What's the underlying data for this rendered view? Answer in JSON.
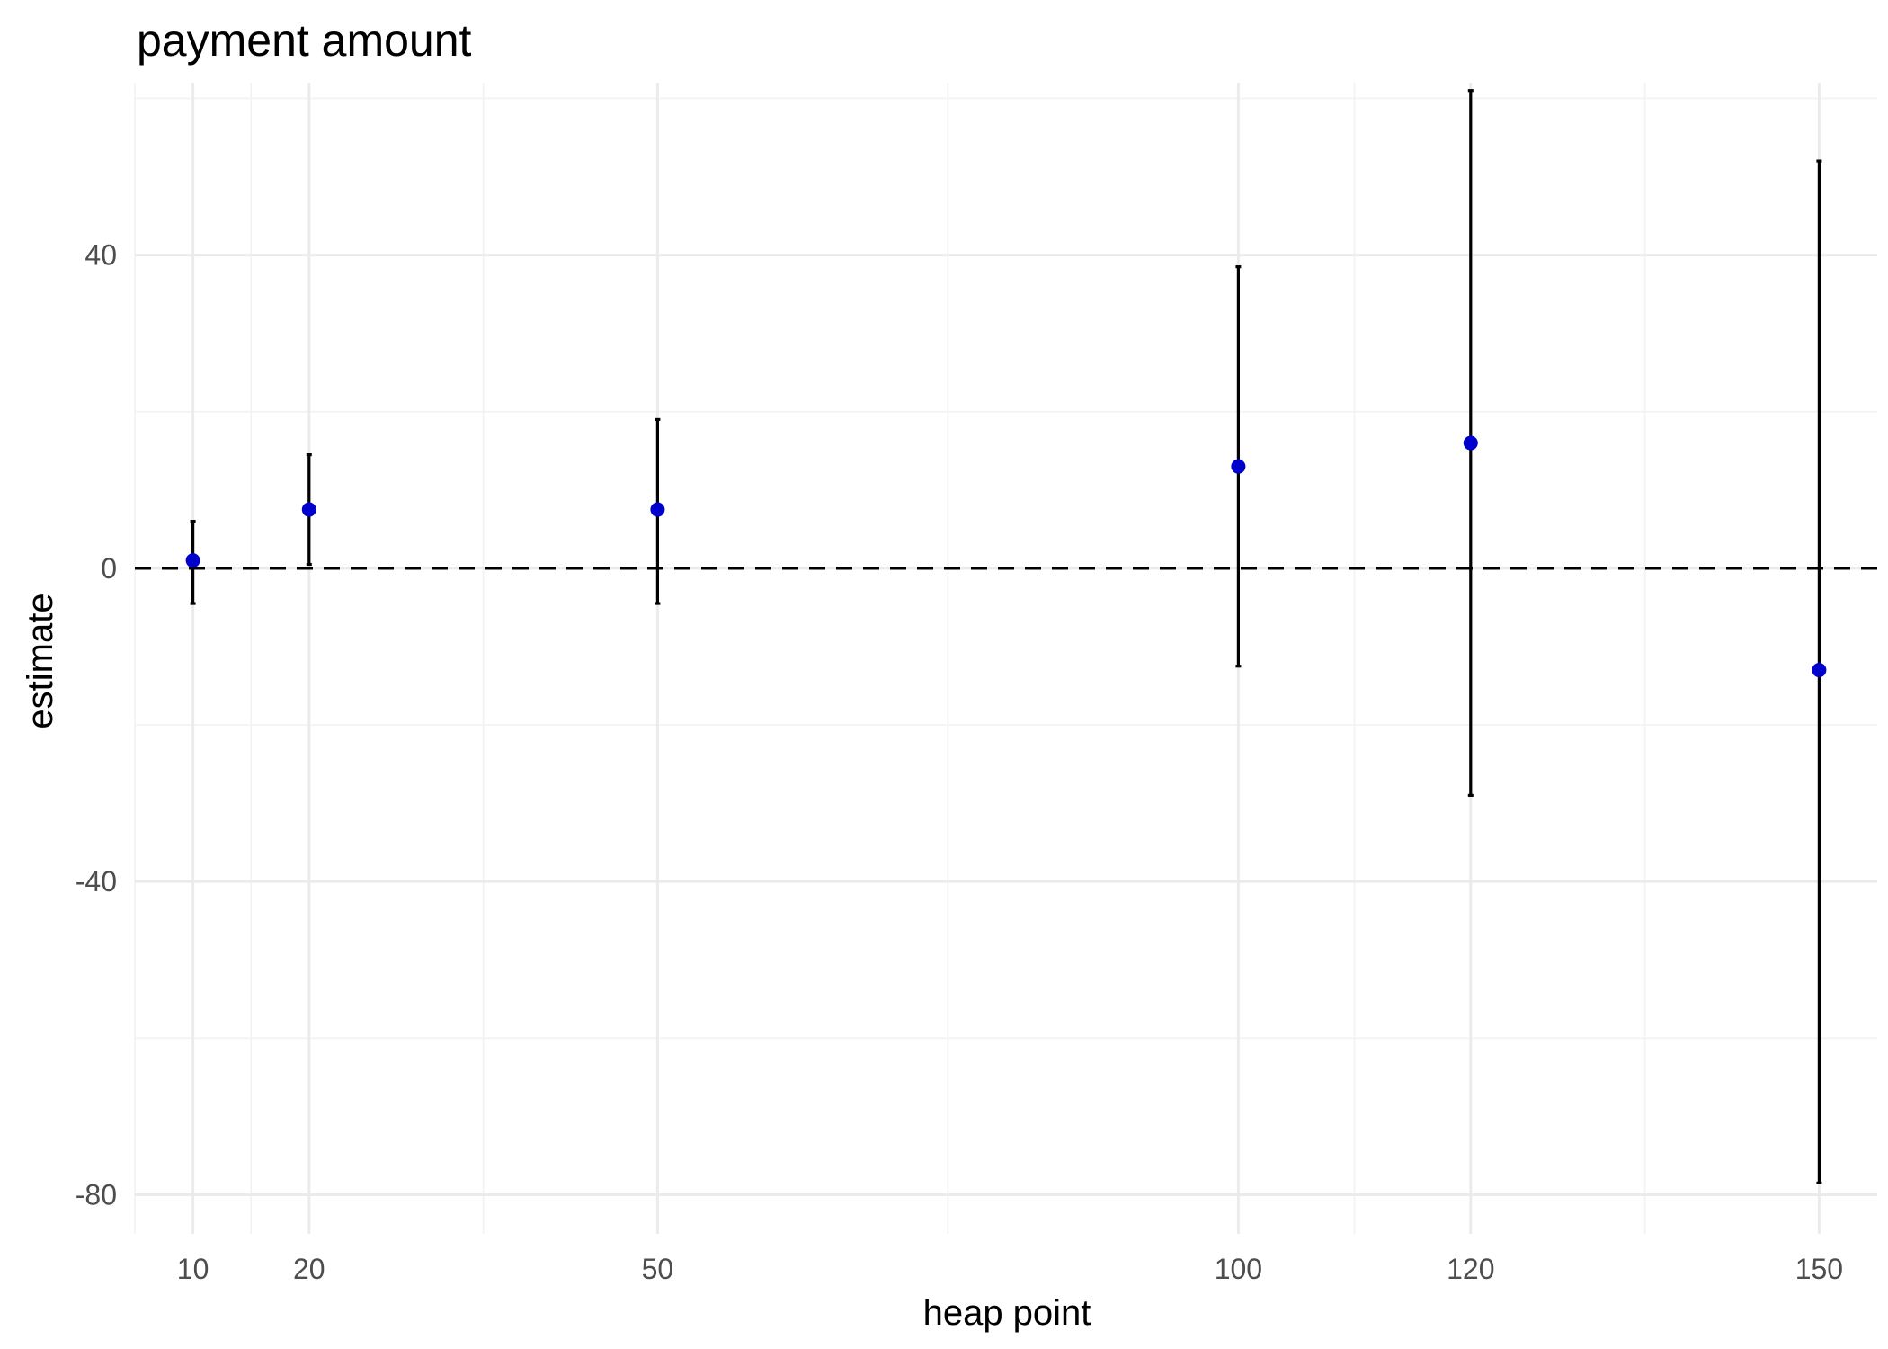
{
  "chart_data": {
    "type": "scatter",
    "title": "payment amount",
    "xlabel": "heap point",
    "ylabel": "estimate",
    "x_ticks": [
      10,
      20,
      50,
      100,
      120,
      150
    ],
    "y_ticks": [
      -80,
      -40,
      0,
      40
    ],
    "xlim": [
      5,
      155
    ],
    "ylim": [
      -85,
      62
    ],
    "reference_line": {
      "y": 0,
      "style": "dashed"
    },
    "grid": true,
    "legend": "none",
    "points": [
      {
        "x": 10,
        "y": 1,
        "ymin": -4.5,
        "ymax": 6
      },
      {
        "x": 20,
        "y": 7.5,
        "ymin": 0.5,
        "ymax": 14.5
      },
      {
        "x": 50,
        "y": 7.5,
        "ymin": -4.5,
        "ymax": 19
      },
      {
        "x": 100,
        "y": 13,
        "ymin": -12.5,
        "ymax": 38.5
      },
      {
        "x": 120,
        "y": 16,
        "ymin": -29,
        "ymax": 61
      },
      {
        "x": 150,
        "y": -13,
        "ymin": -78.5,
        "ymax": 52
      }
    ],
    "colors": {
      "point": "#0000cd",
      "errorbar": "#000000",
      "reference_line": "#000000"
    }
  }
}
